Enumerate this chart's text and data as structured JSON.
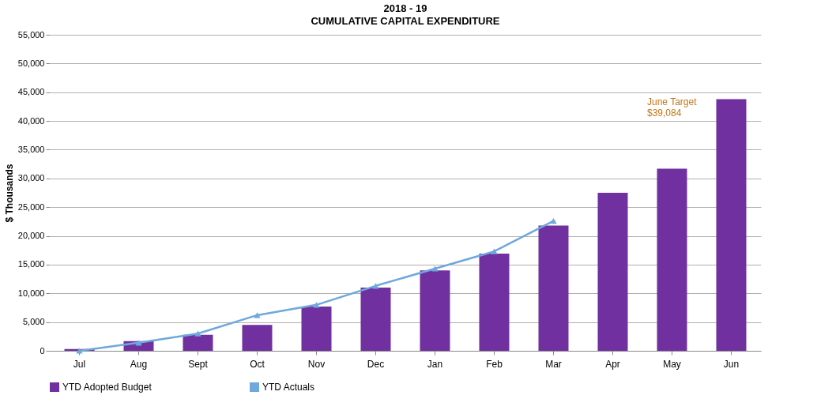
{
  "chart_data": {
    "type": "bar",
    "title": "2018 - 19",
    "subtitle": "CUMULATIVE CAPITAL EXPENDITURE",
    "ylabel": "$ Thousands",
    "categories": [
      "Jul",
      "Aug",
      "Sept",
      "Oct",
      "Nov",
      "Dec",
      "Jan",
      "Feb",
      "Mar",
      "Apr",
      "May",
      "Jun"
    ],
    "series": [
      {
        "name": "YTD Adopted Budget",
        "color": "#7030a0",
        "values": [
          300,
          1700,
          2800,
          4500,
          7700,
          11000,
          14000,
          16900,
          21800,
          27500,
          31700,
          43800
        ]
      },
      {
        "name": "YTD Actuals",
        "type": "line",
        "color": "#6fa8dc",
        "marker": "triangle",
        "values": [
          0,
          1400,
          3000,
          6200,
          8000,
          11300,
          14300,
          17300,
          22600,
          null,
          null,
          null
        ]
      }
    ],
    "ylim": [
      0,
      55000
    ],
    "yticks": [
      0,
      {
        "value": 5000,
        "label": "5,000"
      },
      {
        "value": 10000,
        "label": "10,000"
      },
      {
        "value": 15000,
        "label": "15,000"
      },
      {
        "value": 20000,
        "label": "20,000"
      },
      {
        "value": 25000,
        "label": "25,000"
      },
      {
        "value": 30000,
        "label": "30,000"
      },
      {
        "value": 35000,
        "label": "35,000"
      },
      {
        "value": 40000,
        "label": "40,000"
      },
      {
        "value": 45000,
        "label": "45,000"
      },
      {
        "value": 50000,
        "label": "50,000"
      },
      {
        "value": 55000,
        "label": "55,000"
      }
    ],
    "grid": "y",
    "legend": "bottom",
    "annotations": [
      "June Target\n$39,084"
    ]
  }
}
